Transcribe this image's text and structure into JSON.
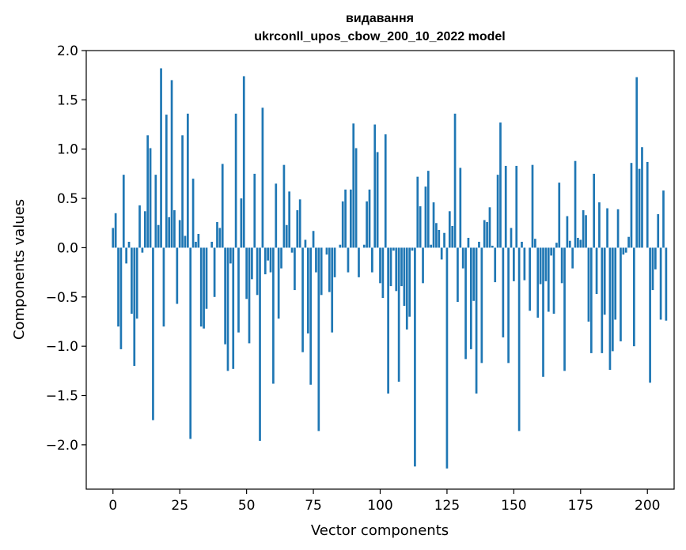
{
  "chart_data": {
    "type": "bar",
    "title": "видавання",
    "subtitle": "ukrconll_upos_cbow_200_10_2022 model",
    "xlabel": "Vector components",
    "ylabel": "Components values",
    "xlim": [
      -10,
      210
    ],
    "ylim": [
      -2.45,
      2.0
    ],
    "xticks": [
      0,
      25,
      50,
      75,
      100,
      125,
      150,
      175,
      200
    ],
    "yticks": [
      2.0,
      1.5,
      1.0,
      0.5,
      0.0,
      -0.5,
      -1.0,
      -1.5,
      -2.0
    ],
    "ytick_labels": [
      "2.0",
      "1.5",
      "1.0",
      "0.5",
      "0.0",
      "−0.5",
      "−1.0",
      "−1.5",
      "−2.0"
    ],
    "bar_color": "#1f77b4",
    "grid": false,
    "values": [
      0.2,
      0.35,
      -0.8,
      -1.03,
      0.74,
      -0.16,
      0.06,
      -0.67,
      -1.2,
      -0.72,
      0.43,
      -0.05,
      0.37,
      1.14,
      1.01,
      -1.75,
      0.74,
      0.23,
      1.82,
      -0.8,
      1.35,
      0.31,
      1.7,
      0.38,
      -0.57,
      0.28,
      1.14,
      0.12,
      1.36,
      -1.94,
      0.7,
      0.06,
      0.14,
      -0.8,
      -0.82,
      -0.62,
      0.0,
      0.06,
      -0.5,
      0.26,
      0.2,
      0.85,
      -0.98,
      -1.25,
      -0.16,
      -1.23,
      1.36,
      -0.86,
      0.5,
      1.74,
      -0.52,
      -0.97,
      -0.32,
      0.75,
      -0.48,
      -1.96,
      1.42,
      -0.27,
      -0.13,
      -0.25,
      -1.38,
      0.65,
      -0.72,
      -0.21,
      0.84,
      0.23,
      0.57,
      -0.05,
      -0.43,
      0.38,
      0.49,
      -1.06,
      0.08,
      -0.87,
      -1.39,
      0.17,
      -0.25,
      -1.86,
      -0.48,
      0.0,
      -0.07,
      -0.45,
      -0.86,
      -0.3,
      0.0,
      0.03,
      0.47,
      0.59,
      -0.25,
      0.59,
      1.26,
      1.01,
      -0.3,
      0.0,
      0.03,
      0.47,
      0.59,
      -0.25,
      1.25,
      0.97,
      -0.36,
      -0.51,
      1.15,
      -1.48,
      -0.39,
      -0.03,
      -0.44,
      -1.36,
      -0.39,
      -0.59,
      -0.83,
      -0.7,
      -0.03,
      -2.22,
      0.72,
      0.42,
      -0.36,
      0.62,
      0.78,
      0.03,
      0.46,
      0.25,
      0.18,
      -0.12,
      0.15,
      -2.24,
      0.37,
      0.22,
      1.36,
      -0.55,
      0.81,
      -0.21,
      -1.13,
      0.1,
      -1.03,
      -0.54,
      -1.48,
      0.06,
      -1.17,
      0.28,
      0.26,
      0.41,
      0.02,
      -0.35,
      0.74,
      1.27,
      -0.91,
      0.83,
      -1.17,
      0.2,
      -0.34,
      0.83,
      -1.86,
      0.06,
      -0.33,
      0.0,
      -0.64,
      0.84,
      0.09,
      -0.71,
      -0.37,
      -1.31,
      -0.34,
      -0.65,
      -0.08,
      -0.67,
      0.05,
      0.66,
      -0.36,
      -1.25,
      0.32,
      0.07,
      -0.21,
      0.88,
      0.1,
      0.08,
      0.38,
      0.33,
      -0.75,
      -1.07,
      0.75,
      -0.47,
      0.46,
      -1.07,
      -0.68,
      0.4,
      -1.24,
      -1.05,
      -0.73,
      0.39,
      -0.95,
      -0.07,
      -0.05,
      0.11,
      0.86,
      -1.0,
      1.73,
      0.8,
      1.02,
      0.0,
      0.87,
      -1.37,
      -0.43,
      -0.22,
      0.34,
      -0.73,
      0.58,
      -0.74
    ]
  }
}
